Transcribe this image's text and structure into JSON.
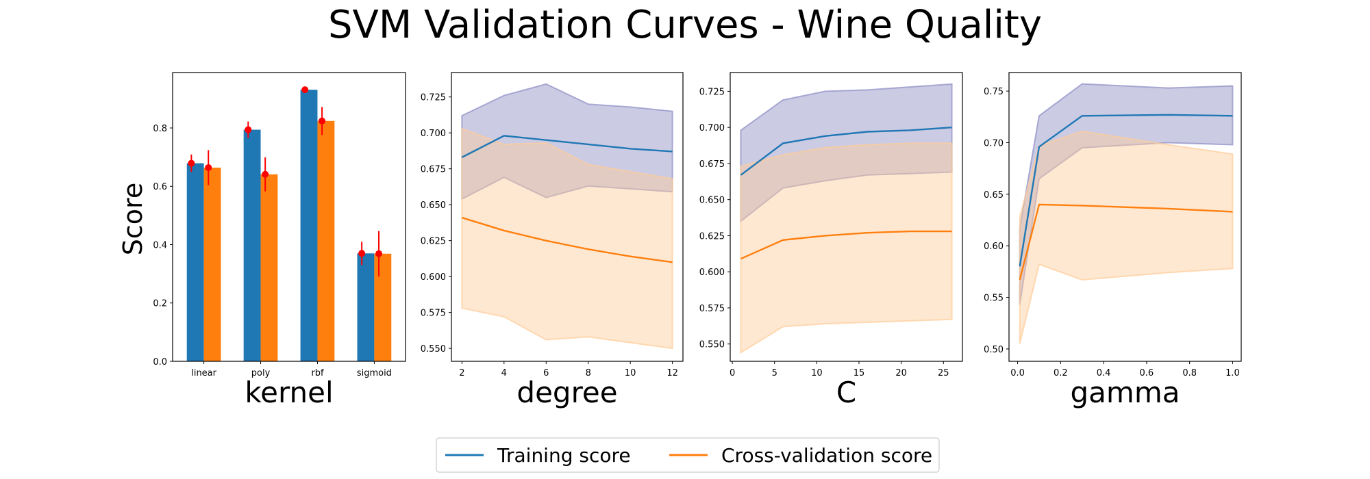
{
  "title": "SVM Validation Curves - Wine Quality",
  "ylabel": "Score",
  "legend": {
    "placement": "bottom-center",
    "entries": [
      {
        "label": "Training score",
        "color": "#1f77b4"
      },
      {
        "label": "Cross-validation score",
        "color": "#ff7f0e"
      }
    ]
  },
  "colors": {
    "training": "#1f77b4",
    "cv": "#ff7f0e",
    "training_band": "#8c8cc4",
    "cv_band": "#ffcc99",
    "errorbar": "#ff0000"
  },
  "chart_data": [
    {
      "type": "bar",
      "xlabel": "kernel",
      "categories": [
        "linear",
        "poly",
        "rbf",
        "sigmoid"
      ],
      "ylim": [
        0,
        0.99
      ],
      "yticks": [
        0.0,
        0.2,
        0.4,
        0.6,
        0.8
      ],
      "yticklabels": [
        "0.0",
        "0.2",
        "0.4",
        "0.6",
        "0.8"
      ],
      "series": [
        {
          "name": "Training score",
          "values": [
            0.679,
            0.794,
            0.931,
            0.37
          ],
          "errors": [
            0.03,
            0.028,
            0.005,
            0.04
          ]
        },
        {
          "name": "Cross-validation score",
          "values": [
            0.664,
            0.641,
            0.824,
            0.369
          ],
          "errors": [
            0.06,
            0.058,
            0.048,
            0.078
          ]
        }
      ]
    },
    {
      "type": "line",
      "xlabel": "degree",
      "xlim": [
        1.5,
        12.5
      ],
      "ylim": [
        0.541,
        0.742
      ],
      "xticks": [
        2,
        4,
        6,
        8,
        10,
        12
      ],
      "xticklabels": [
        "2",
        "4",
        "6",
        "8",
        "10",
        "12"
      ],
      "yticks": [
        0.55,
        0.575,
        0.6,
        0.625,
        0.65,
        0.675,
        0.7,
        0.725
      ],
      "yticklabels": [
        "0.550",
        "0.575",
        "0.600",
        "0.625",
        "0.650",
        "0.675",
        "0.700",
        "0.725"
      ],
      "x": [
        2,
        4,
        6,
        8,
        10,
        12
      ],
      "series": [
        {
          "name": "Training score",
          "values": [
            0.683,
            0.698,
            0.695,
            0.692,
            0.689,
            0.687
          ],
          "lower": [
            0.654,
            0.669,
            0.655,
            0.663,
            0.661,
            0.659
          ],
          "upper": [
            0.712,
            0.726,
            0.734,
            0.72,
            0.718,
            0.715
          ]
        },
        {
          "name": "Cross-validation score",
          "values": [
            0.641,
            0.632,
            0.625,
            0.619,
            0.614,
            0.61
          ],
          "lower": [
            0.578,
            0.572,
            0.556,
            0.558,
            0.554,
            0.55
          ],
          "upper": [
            0.703,
            0.692,
            0.693,
            0.678,
            0.673,
            0.668
          ]
        }
      ]
    },
    {
      "type": "line",
      "xlabel": "C",
      "xlim": [
        -0.25,
        27.25
      ],
      "ylim": [
        0.538,
        0.738
      ],
      "xticks": [
        0,
        5,
        10,
        15,
        20,
        25
      ],
      "xticklabels": [
        "0",
        "5",
        "10",
        "15",
        "20",
        "25"
      ],
      "yticks": [
        0.55,
        0.575,
        0.6,
        0.625,
        0.65,
        0.675,
        0.7,
        0.725
      ],
      "yticklabels": [
        "0.550",
        "0.575",
        "0.600",
        "0.625",
        "0.650",
        "0.675",
        "0.700",
        "0.725"
      ],
      "x": [
        1,
        6,
        11,
        16,
        21,
        26
      ],
      "series": [
        {
          "name": "Training score",
          "values": [
            0.667,
            0.689,
            0.694,
            0.697,
            0.698,
            0.7
          ],
          "lower": [
            0.635,
            0.658,
            0.663,
            0.667,
            0.668,
            0.669
          ],
          "upper": [
            0.698,
            0.719,
            0.725,
            0.726,
            0.728,
            0.73
          ]
        },
        {
          "name": "Cross-validation score",
          "values": [
            0.609,
            0.622,
            0.625,
            0.627,
            0.628,
            0.628
          ],
          "lower": [
            0.544,
            0.562,
            0.564,
            0.565,
            0.566,
            0.567
          ],
          "upper": [
            0.673,
            0.681,
            0.686,
            0.688,
            0.689,
            0.689
          ]
        }
      ]
    },
    {
      "type": "line",
      "xlabel": "gamma",
      "xlim": [
        -0.04,
        1.04
      ],
      "ylim": [
        0.488,
        0.768
      ],
      "xticks": [
        0.0,
        0.2,
        0.4,
        0.6,
        0.8,
        1.0
      ],
      "xticklabels": [
        "0.0",
        "0.2",
        "0.4",
        "0.6",
        "0.8",
        "1.0"
      ],
      "yticks": [
        0.5,
        0.55,
        0.6,
        0.65,
        0.7,
        0.75
      ],
      "yticklabels": [
        "0.50",
        "0.55",
        "0.60",
        "0.65",
        "0.70",
        "0.75"
      ],
      "x": [
        0.01,
        0.1,
        0.3,
        0.7,
        1.0
      ],
      "series": [
        {
          "name": "Training score",
          "values": [
            0.58,
            0.696,
            0.726,
            0.727,
            0.726
          ],
          "lower": [
            0.543,
            0.665,
            0.695,
            0.7,
            0.698
          ],
          "upper": [
            0.617,
            0.726,
            0.757,
            0.753,
            0.755
          ]
        },
        {
          "name": "Cross-validation score",
          "values": [
            0.567,
            0.64,
            0.639,
            0.636,
            0.633
          ],
          "lower": [
            0.505,
            0.582,
            0.567,
            0.574,
            0.578
          ],
          "upper": [
            0.628,
            0.697,
            0.711,
            0.698,
            0.689
          ]
        }
      ]
    }
  ]
}
